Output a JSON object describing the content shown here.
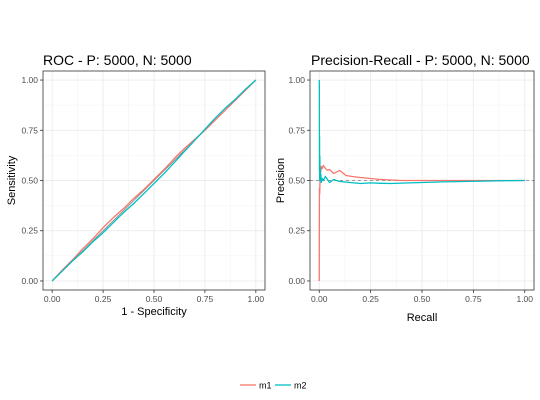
{
  "colors": {
    "m1": "#F8766D",
    "m2": "#00BFC4",
    "reference": "#7f7f7f"
  },
  "chart_data": [
    {
      "type": "line",
      "title": "ROC - P: 5000, N: 5000",
      "xlabel": "1 - Specificity",
      "ylabel": "Sensitivity",
      "xlim": [
        0,
        1
      ],
      "ylim": [
        0,
        1
      ],
      "x_ticks": [
        "0.00",
        "0.25",
        "0.50",
        "0.75",
        "1.00"
      ],
      "y_ticks": [
        "0.00",
        "0.25",
        "0.50",
        "0.75",
        "1.00"
      ],
      "grid": true,
      "reference_line": "diagonal y = x",
      "series": [
        {
          "name": "m1",
          "x": [
            0,
            0.05,
            0.1,
            0.15,
            0.2,
            0.25,
            0.3,
            0.35,
            0.4,
            0.45,
            0.5,
            0.55,
            0.6,
            0.65,
            0.7,
            0.75,
            0.8,
            0.85,
            0.9,
            0.95,
            1
          ],
          "y": [
            0,
            0.055,
            0.105,
            0.16,
            0.21,
            0.265,
            0.315,
            0.36,
            0.41,
            0.455,
            0.505,
            0.555,
            0.61,
            0.66,
            0.705,
            0.75,
            0.8,
            0.85,
            0.9,
            0.95,
            1
          ]
        },
        {
          "name": "m2",
          "x": [
            0,
            0.05,
            0.1,
            0.15,
            0.2,
            0.25,
            0.3,
            0.35,
            0.4,
            0.45,
            0.5,
            0.55,
            0.6,
            0.65,
            0.7,
            0.75,
            0.8,
            0.85,
            0.9,
            0.95,
            1
          ],
          "y": [
            0,
            0.05,
            0.1,
            0.145,
            0.195,
            0.24,
            0.29,
            0.34,
            0.385,
            0.435,
            0.485,
            0.535,
            0.59,
            0.645,
            0.7,
            0.755,
            0.81,
            0.86,
            0.905,
            0.955,
            1
          ]
        }
      ]
    },
    {
      "type": "line",
      "title": "Precision-Recall - P: 5000, N: 5000",
      "xlabel": "Recall",
      "ylabel": "Precision",
      "xlim": [
        0,
        1
      ],
      "ylim": [
        0,
        1
      ],
      "x_ticks": [
        "0.00",
        "0.25",
        "0.50",
        "0.75",
        "1.00"
      ],
      "y_ticks": [
        "0.00",
        "0.25",
        "0.50",
        "0.75",
        "1.00"
      ],
      "grid": true,
      "reference_line": "horizontal y = 0.5",
      "series": [
        {
          "name": "m1",
          "x": [
            0.0,
            0.0005,
            0.001,
            0.002,
            0.004,
            0.006,
            0.008,
            0.01,
            0.015,
            0.02,
            0.03,
            0.04,
            0.05,
            0.07,
            0.1,
            0.13,
            0.16,
            0.2,
            0.25,
            0.3,
            0.4,
            0.5,
            0.6,
            0.7,
            0.8,
            0.9,
            1.0
          ],
          "y": [
            0.0,
            0.3,
            0.46,
            0.43,
            0.5,
            0.53,
            0.55,
            0.57,
            0.56,
            0.575,
            0.56,
            0.55,
            0.555,
            0.535,
            0.55,
            0.525,
            0.52,
            0.515,
            0.51,
            0.505,
            0.5,
            0.5,
            0.5,
            0.5,
            0.5,
            0.5,
            0.5
          ]
        },
        {
          "name": "m2",
          "x": [
            0.0,
            0.0005,
            0.001,
            0.0015,
            0.002,
            0.003,
            0.004,
            0.005,
            0.006,
            0.008,
            0.01,
            0.015,
            0.02,
            0.03,
            0.05,
            0.07,
            0.1,
            0.15,
            0.2,
            0.25,
            0.3,
            0.35,
            0.4,
            0.5,
            0.6,
            0.7,
            0.8,
            0.9,
            1.0
          ],
          "y": [
            1.0,
            0.98,
            0.55,
            0.72,
            0.5,
            0.62,
            0.52,
            0.56,
            0.5,
            0.53,
            0.49,
            0.51,
            0.5,
            0.52,
            0.49,
            0.505,
            0.495,
            0.49,
            0.485,
            0.488,
            0.486,
            0.485,
            0.487,
            0.49,
            0.493,
            0.495,
            0.497,
            0.499,
            0.5
          ]
        }
      ]
    }
  ],
  "legend": {
    "items": [
      "m1",
      "m2"
    ],
    "position": "bottom"
  }
}
